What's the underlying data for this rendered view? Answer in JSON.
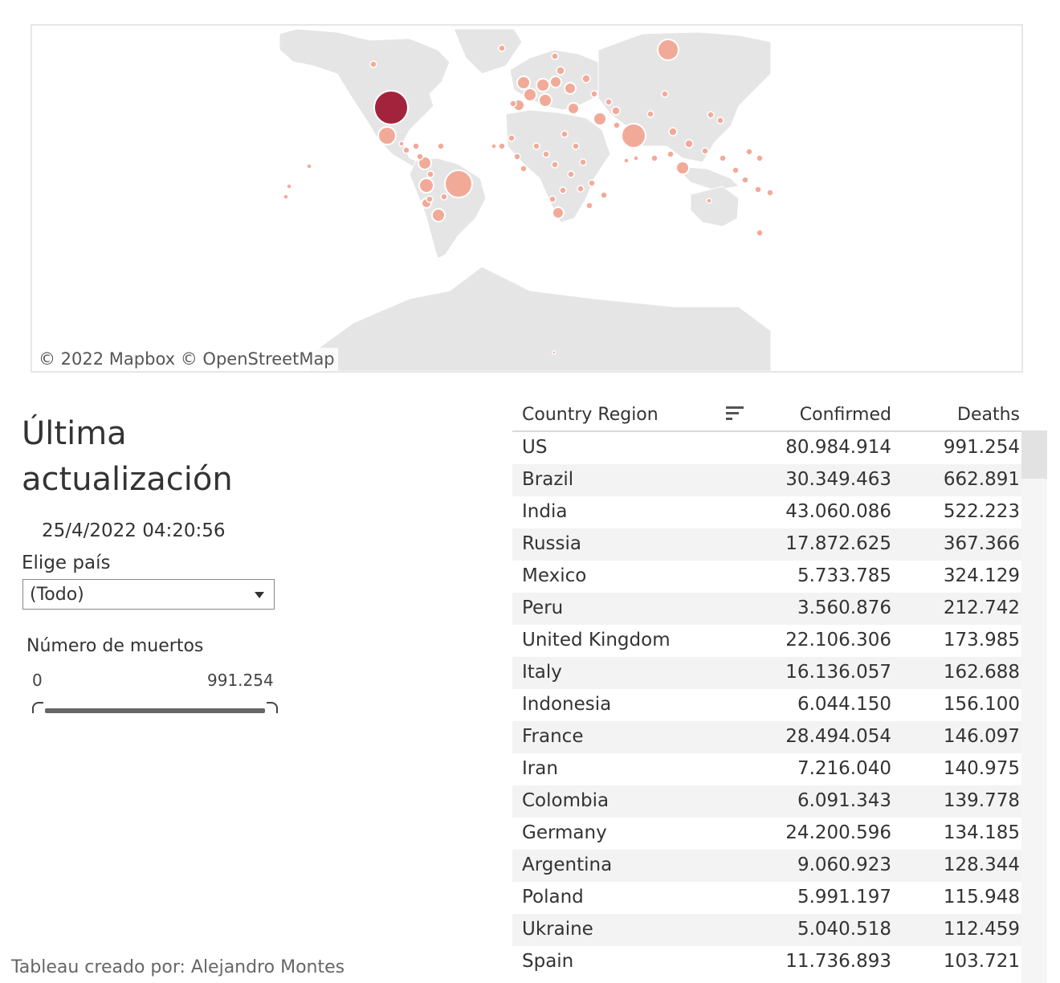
{
  "map": {
    "attribution": "© 2022 Mapbox  © OpenStreetMap",
    "colors": {
      "land": "#e5e5e5",
      "bubble": "#f2aa98",
      "bubble_max": "#a4233c",
      "background": "#ffffff"
    }
  },
  "left_panel": {
    "last_update_title": "Última actualización:",
    "last_update_value": "25/4/2022 04:20:56",
    "country_filter_label": "Elige país",
    "country_filter_value": "(Todo)",
    "deaths_slider": {
      "title": "Número de muertos",
      "min_label": "0",
      "max_label": "991.254",
      "low": 0,
      "high": 991254
    },
    "credit": "Tableau creado por: Alejandro Montes"
  },
  "table": {
    "columns": [
      "Country Region",
      "Confirmed",
      "Deaths"
    ],
    "rows": [
      {
        "country": "US",
        "confirmed": "80.984.914",
        "deaths": "991.254"
      },
      {
        "country": "Brazil",
        "confirmed": "30.349.463",
        "deaths": "662.891"
      },
      {
        "country": "India",
        "confirmed": "43.060.086",
        "deaths": "522.223"
      },
      {
        "country": "Russia",
        "confirmed": "17.872.625",
        "deaths": "367.366"
      },
      {
        "country": "Mexico",
        "confirmed": "5.733.785",
        "deaths": "324.129"
      },
      {
        "country": "Peru",
        "confirmed": "3.560.876",
        "deaths": "212.742"
      },
      {
        "country": "United Kingdom",
        "confirmed": "22.106.306",
        "deaths": "173.985"
      },
      {
        "country": "Italy",
        "confirmed": "16.136.057",
        "deaths": "162.688"
      },
      {
        "country": "Indonesia",
        "confirmed": "6.044.150",
        "deaths": "156.100"
      },
      {
        "country": "France",
        "confirmed": "28.494.054",
        "deaths": "146.097"
      },
      {
        "country": "Iran",
        "confirmed": "7.216.040",
        "deaths": "140.975"
      },
      {
        "country": "Colombia",
        "confirmed": "6.091.343",
        "deaths": "139.778"
      },
      {
        "country": "Germany",
        "confirmed": "24.200.596",
        "deaths": "134.185"
      },
      {
        "country": "Argentina",
        "confirmed": "9.060.923",
        "deaths": "128.344"
      },
      {
        "country": "Poland",
        "confirmed": "5.991.197",
        "deaths": "115.948"
      },
      {
        "country": "Ukraine",
        "confirmed": "5.040.518",
        "deaths": "112.459"
      },
      {
        "country": "Spain",
        "confirmed": "11.736.893",
        "deaths": "103.721"
      }
    ]
  }
}
